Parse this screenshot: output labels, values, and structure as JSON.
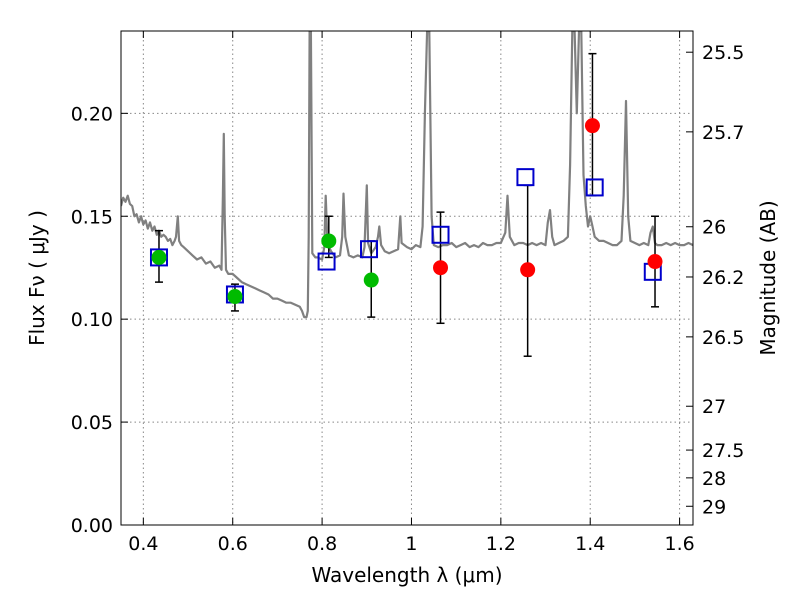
{
  "chart_data": {
    "type": "scatter",
    "title": "",
    "xlabel": "Wavelength  λ (μm)",
    "ylabel": "Flux  Fν  ( μJy )",
    "ylabel_right": "Magnitude (AB)",
    "xlim": [
      0.35,
      1.63
    ],
    "ylim": [
      0.0,
      0.24
    ],
    "grid": true,
    "x_ticks": [
      0.4,
      0.6,
      0.8,
      1.0,
      1.2,
      1.4,
      1.6
    ],
    "x_tick_labels": [
      "0.4",
      "0.6",
      "0.8",
      "1",
      "1.2",
      "1.4",
      "1.6"
    ],
    "y_ticks": [
      0.0,
      0.05,
      0.1,
      0.15,
      0.2
    ],
    "y_tick_labels": [
      "0.00",
      "0.05",
      "0.10",
      "0.15",
      "0.20"
    ],
    "right_ticks": [
      {
        "label": "25.5",
        "flux": 0.2297
      },
      {
        "label": "25.7",
        "flux": 0.191
      },
      {
        "label": "26",
        "flux": 0.1449
      },
      {
        "label": "26.2",
        "flux": 0.1205
      },
      {
        "label": "26.5",
        "flux": 0.0914
      },
      {
        "label": "27",
        "flux": 0.0577
      },
      {
        "label": "27.5",
        "flux": 0.0364
      },
      {
        "label": "28",
        "flux": 0.0229
      },
      {
        "label": "29",
        "flux": 0.0091
      }
    ],
    "series": [
      {
        "color": "#808080",
        "kind": "line",
        "points": [
          [
            0.35,
            0.155
          ],
          [
            0.355,
            0.159
          ],
          [
            0.36,
            0.157
          ],
          [
            0.365,
            0.16
          ],
          [
            0.37,
            0.156
          ],
          [
            0.375,
            0.155
          ],
          [
            0.38,
            0.15
          ],
          [
            0.385,
            0.151
          ],
          [
            0.39,
            0.147
          ],
          [
            0.395,
            0.15
          ],
          [
            0.4,
            0.146
          ],
          [
            0.405,
            0.148
          ],
          [
            0.41,
            0.144
          ],
          [
            0.415,
            0.147
          ],
          [
            0.42,
            0.143
          ],
          [
            0.425,
            0.145
          ],
          [
            0.43,
            0.141
          ],
          [
            0.435,
            0.143
          ],
          [
            0.44,
            0.14
          ],
          [
            0.445,
            0.141
          ],
          [
            0.45,
            0.14
          ],
          [
            0.455,
            0.138
          ],
          [
            0.46,
            0.139
          ],
          [
            0.465,
            0.136
          ],
          [
            0.47,
            0.138
          ],
          [
            0.473,
            0.14
          ],
          [
            0.477,
            0.15
          ],
          [
            0.48,
            0.138
          ],
          [
            0.485,
            0.136
          ],
          [
            0.49,
            0.135
          ],
          [
            0.5,
            0.133
          ],
          [
            0.51,
            0.131
          ],
          [
            0.52,
            0.129
          ],
          [
            0.53,
            0.13
          ],
          [
            0.54,
            0.127
          ],
          [
            0.55,
            0.128
          ],
          [
            0.56,
            0.125
          ],
          [
            0.57,
            0.126
          ],
          [
            0.575,
            0.124
          ],
          [
            0.578,
            0.16
          ],
          [
            0.58,
            0.19
          ],
          [
            0.582,
            0.15
          ],
          [
            0.585,
            0.124
          ],
          [
            0.59,
            0.122
          ],
          [
            0.6,
            0.122
          ],
          [
            0.61,
            0.12
          ],
          [
            0.62,
            0.118
          ],
          [
            0.63,
            0.117
          ],
          [
            0.64,
            0.116
          ],
          [
            0.65,
            0.115
          ],
          [
            0.66,
            0.114
          ],
          [
            0.67,
            0.113
          ],
          [
            0.68,
            0.112
          ],
          [
            0.69,
            0.11
          ],
          [
            0.7,
            0.11
          ],
          [
            0.71,
            0.109
          ],
          [
            0.72,
            0.108
          ],
          [
            0.73,
            0.108
          ],
          [
            0.74,
            0.107
          ],
          [
            0.75,
            0.106
          ],
          [
            0.755,
            0.104
          ],
          [
            0.76,
            0.101
          ],
          [
            0.765,
            0.101
          ],
          [
            0.768,
            0.104
          ],
          [
            0.77,
            0.14
          ],
          [
            0.772,
            0.24
          ],
          [
            0.775,
            0.24
          ],
          [
            0.778,
            0.132
          ],
          [
            0.785,
            0.13
          ],
          [
            0.79,
            0.13
          ],
          [
            0.8,
            0.129
          ],
          [
            0.805,
            0.135
          ],
          [
            0.808,
            0.16
          ],
          [
            0.812,
            0.137
          ],
          [
            0.82,
            0.133
          ],
          [
            0.83,
            0.13
          ],
          [
            0.84,
            0.131
          ],
          [
            0.845,
            0.14
          ],
          [
            0.848,
            0.161
          ],
          [
            0.852,
            0.14
          ],
          [
            0.86,
            0.131
          ],
          [
            0.87,
            0.13
          ],
          [
            0.88,
            0.131
          ],
          [
            0.89,
            0.13
          ],
          [
            0.895,
            0.135
          ],
          [
            0.9,
            0.165
          ],
          [
            0.903,
            0.137
          ],
          [
            0.91,
            0.132
          ],
          [
            0.92,
            0.135
          ],
          [
            0.925,
            0.14
          ],
          [
            0.928,
            0.145
          ],
          [
            0.932,
            0.136
          ],
          [
            0.94,
            0.133
          ],
          [
            0.95,
            0.132
          ],
          [
            0.96,
            0.133
          ],
          [
            0.97,
            0.134
          ],
          [
            0.975,
            0.15
          ],
          [
            0.978,
            0.137
          ],
          [
            0.99,
            0.135
          ],
          [
            1.0,
            0.134
          ],
          [
            1.01,
            0.136
          ],
          [
            1.02,
            0.135
          ],
          [
            1.025,
            0.145
          ],
          [
            1.03,
            0.2
          ],
          [
            1.035,
            0.24
          ],
          [
            1.04,
            0.24
          ],
          [
            1.045,
            0.15
          ],
          [
            1.05,
            0.136
          ],
          [
            1.06,
            0.135
          ],
          [
            1.07,
            0.136
          ],
          [
            1.08,
            0.136
          ],
          [
            1.09,
            0.137
          ],
          [
            1.1,
            0.135
          ],
          [
            1.11,
            0.136
          ],
          [
            1.12,
            0.137
          ],
          [
            1.13,
            0.135
          ],
          [
            1.14,
            0.136
          ],
          [
            1.15,
            0.135
          ],
          [
            1.16,
            0.137
          ],
          [
            1.17,
            0.136
          ],
          [
            1.18,
            0.136
          ],
          [
            1.19,
            0.137
          ],
          [
            1.2,
            0.137
          ],
          [
            1.21,
            0.142
          ],
          [
            1.215,
            0.16
          ],
          [
            1.22,
            0.14
          ],
          [
            1.23,
            0.136
          ],
          [
            1.24,
            0.137
          ],
          [
            1.25,
            0.137
          ],
          [
            1.26,
            0.136
          ],
          [
            1.27,
            0.137
          ],
          [
            1.28,
            0.136
          ],
          [
            1.29,
            0.137
          ],
          [
            1.3,
            0.136
          ],
          [
            1.305,
            0.147
          ],
          [
            1.31,
            0.153
          ],
          [
            1.315,
            0.14
          ],
          [
            1.32,
            0.136
          ],
          [
            1.33,
            0.137
          ],
          [
            1.34,
            0.138
          ],
          [
            1.35,
            0.14
          ],
          [
            1.355,
            0.175
          ],
          [
            1.36,
            0.24
          ],
          [
            1.365,
            0.24
          ],
          [
            1.37,
            0.2
          ],
          [
            1.375,
            0.24
          ],
          [
            1.38,
            0.24
          ],
          [
            1.385,
            0.17
          ],
          [
            1.39,
            0.155
          ],
          [
            1.395,
            0.145
          ],
          [
            1.4,
            0.15
          ],
          [
            1.405,
            0.145
          ],
          [
            1.41,
            0.14
          ],
          [
            1.42,
            0.138
          ],
          [
            1.43,
            0.138
          ],
          [
            1.44,
            0.137
          ],
          [
            1.45,
            0.136
          ],
          [
            1.46,
            0.136
          ],
          [
            1.47,
            0.138
          ],
          [
            1.475,
            0.16
          ],
          [
            1.48,
            0.206
          ],
          [
            1.485,
            0.15
          ],
          [
            1.49,
            0.138
          ],
          [
            1.5,
            0.137
          ],
          [
            1.51,
            0.136
          ],
          [
            1.52,
            0.137
          ],
          [
            1.53,
            0.136
          ],
          [
            1.535,
            0.142
          ],
          [
            1.54,
            0.145
          ],
          [
            1.545,
            0.137
          ],
          [
            1.55,
            0.136
          ],
          [
            1.56,
            0.136
          ],
          [
            1.57,
            0.137
          ],
          [
            1.58,
            0.136
          ],
          [
            1.59,
            0.137
          ],
          [
            1.6,
            0.136
          ],
          [
            1.61,
            0.136
          ],
          [
            1.62,
            0.137
          ],
          [
            1.63,
            0.136
          ]
        ]
      },
      {
        "color": "#0000cc",
        "kind": "open-square",
        "points": [
          [
            0.435,
            0.13
          ],
          [
            0.605,
            0.112
          ],
          [
            0.81,
            0.128
          ],
          [
            0.905,
            0.134
          ],
          [
            1.065,
            0.141
          ],
          [
            1.255,
            0.169
          ],
          [
            1.41,
            0.164
          ],
          [
            1.54,
            0.123
          ]
        ]
      },
      {
        "color": "#00bb00",
        "kind": "filled-circle",
        "points": [
          [
            0.435,
            0.13
          ],
          [
            0.605,
            0.111
          ],
          [
            0.815,
            0.138
          ],
          [
            0.91,
            0.119
          ]
        ]
      },
      {
        "color": "#ff0000",
        "kind": "filled-circle",
        "points": [
          [
            1.065,
            0.125
          ],
          [
            1.26,
            0.124
          ],
          [
            1.405,
            0.194
          ],
          [
            1.545,
            0.128
          ]
        ]
      }
    ],
    "error_bars": [
      {
        "x": 0.435,
        "y_low": 0.118,
        "y_high": 0.143
      },
      {
        "x": 0.605,
        "y_low": 0.104,
        "y_high": 0.117
      },
      {
        "x": 0.815,
        "y_low": 0.13,
        "y_high": 0.15
      },
      {
        "x": 0.91,
        "y_low": 0.101,
        "y_high": 0.138
      },
      {
        "x": 1.065,
        "y_low": 0.098,
        "y_high": 0.152
      },
      {
        "x": 1.26,
        "y_low": 0.082,
        "y_high": 0.165
      },
      {
        "x": 1.405,
        "y_low": 0.16,
        "y_high": 0.229
      },
      {
        "x": 1.545,
        "y_low": 0.106,
        "y_high": 0.15
      }
    ]
  }
}
